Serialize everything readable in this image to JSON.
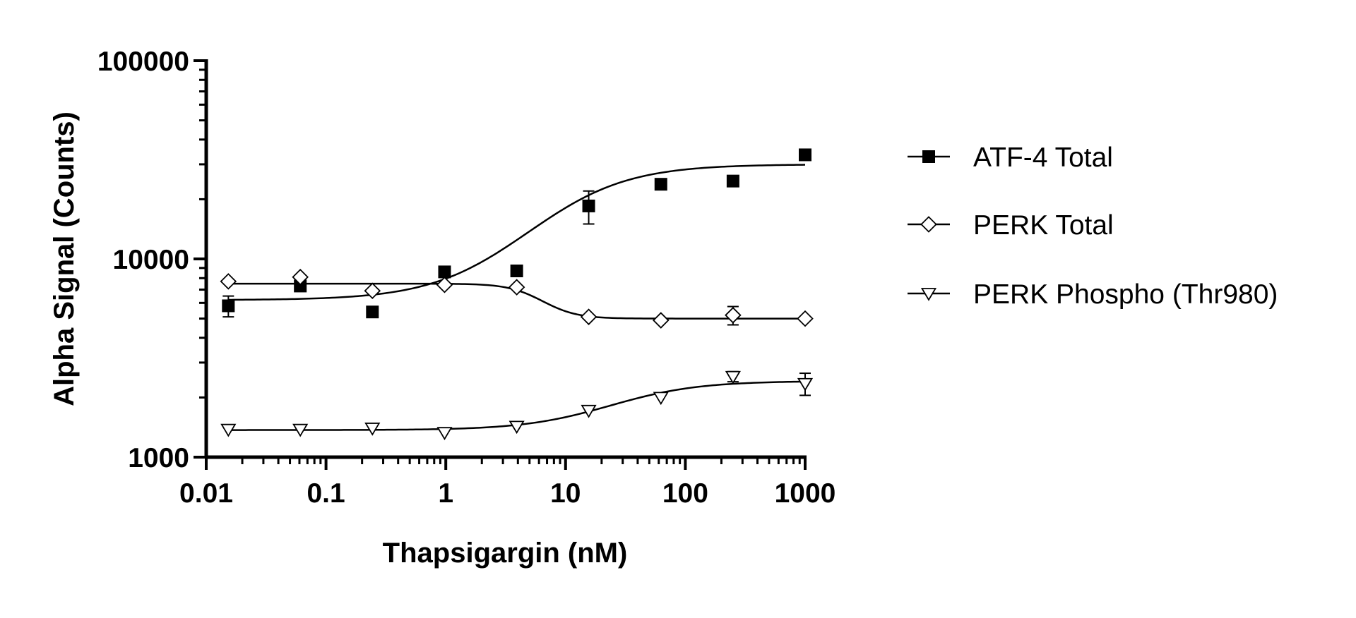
{
  "chart_data": {
    "type": "scatter",
    "title": "",
    "xlabel": "Thapsigargin (nM)",
    "ylabel": "Alpha Signal (Counts)",
    "xscale": "log",
    "yscale": "log",
    "xlim": [
      0.01,
      1000
    ],
    "ylim": [
      1000,
      100000
    ],
    "xticks": [
      {
        "value": 0.01,
        "label": "0.01"
      },
      {
        "value": 0.1,
        "label": "0.1"
      },
      {
        "value": 1,
        "label": "1"
      },
      {
        "value": 10,
        "label": "10"
      },
      {
        "value": 100,
        "label": "100"
      },
      {
        "value": 1000,
        "label": "1000"
      }
    ],
    "yticks": [
      {
        "value": 1000,
        "label": "1000"
      },
      {
        "value": 10000,
        "label": "10000"
      },
      {
        "value": 100000,
        "label": "100000"
      }
    ],
    "legend_position": "right",
    "grid": false,
    "series": [
      {
        "name": "ATF-4 Total",
        "marker": "filled-square",
        "color": "#000000",
        "x": [
          0.0153,
          0.061,
          0.244,
          0.977,
          3.91,
          15.6,
          62.5,
          250,
          1000
        ],
        "y": [
          5800,
          7300,
          5400,
          8600,
          8700,
          18500,
          23800,
          24700,
          33500
        ],
        "err": [
          700,
          0,
          0,
          0,
          0,
          3500,
          0,
          1500,
          0
        ],
        "fit": {
          "bottom": 6200,
          "top": 30000,
          "ec50": 10,
          "hill": 1.1
        }
      },
      {
        "name": "PERK Total",
        "marker": "open-diamond",
        "color": "#000000",
        "x": [
          0.0153,
          0.061,
          0.244,
          0.977,
          3.91,
          15.6,
          62.5,
          250,
          1000
        ],
        "y": [
          7700,
          8100,
          6900,
          7400,
          7200,
          5100,
          4900,
          5200,
          5000
        ],
        "err": [
          0,
          0,
          0,
          0,
          0,
          0,
          0,
          550,
          0
        ],
        "fit": {
          "bottom": 7500,
          "top": 5000,
          "ec50": 6,
          "hill": 3
        }
      },
      {
        "name": "PERK Phospho (Thr980)",
        "marker": "open-triangle-down",
        "color": "#000000",
        "x": [
          0.0153,
          0.061,
          0.244,
          0.977,
          3.91,
          15.6,
          62.5,
          250,
          1000
        ],
        "y": [
          1380,
          1380,
          1400,
          1330,
          1430,
          1720,
          2000,
          2550,
          2350
        ],
        "err": [
          0,
          0,
          0,
          0,
          0,
          0,
          0,
          150,
          300
        ],
        "fit": {
          "bottom": 1370,
          "top": 2420,
          "ec50": 30,
          "hill": 1.2
        }
      }
    ]
  }
}
